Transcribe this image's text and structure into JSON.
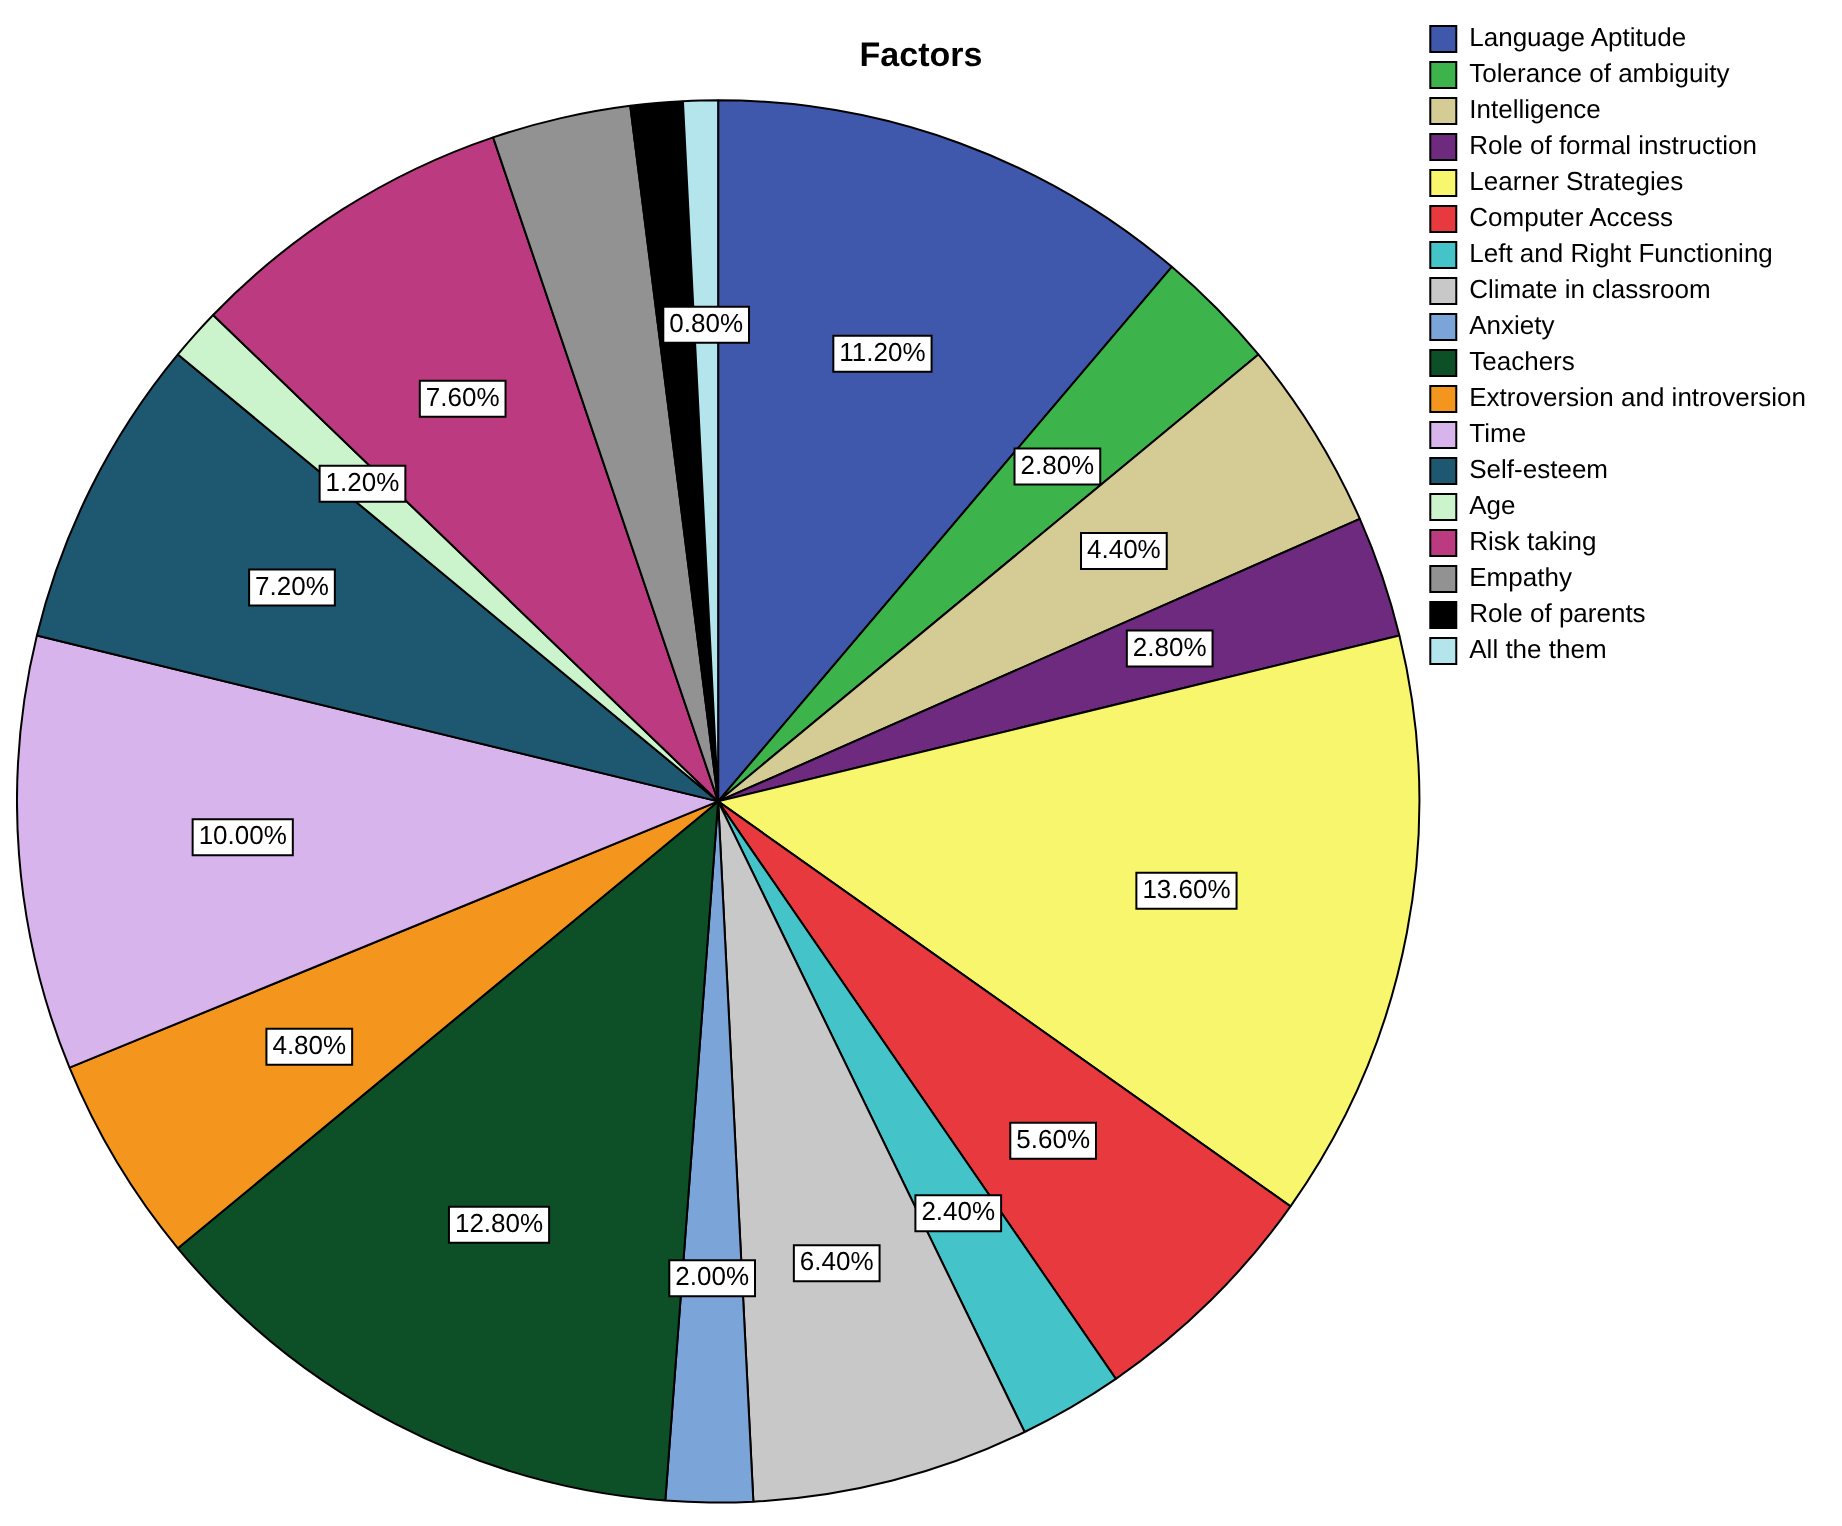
{
  "chart_data": {
    "type": "pie",
    "title": "Factors",
    "categories": [
      "Language Aptitude",
      "Tolerance of ambiguity",
      "Intelligence",
      "Role of formal instruction",
      "Learner Strategies",
      "Computer Access",
      "Left and Right Functioning",
      "Climate in classroom",
      "Anxiety",
      "Teachers",
      "Extroversion and introversion",
      "Time",
      "Self-esteem",
      "Age",
      "Risk taking",
      "Empathy",
      "Role of parents",
      "All the them"
    ],
    "values": [
      11.2,
      2.8,
      4.4,
      2.8,
      13.6,
      5.6,
      2.4,
      6.4,
      2.0,
      12.8,
      4.8,
      10.0,
      7.2,
      1.2,
      7.6,
      3.2,
      1.2,
      0.8
    ],
    "value_labels": [
      "11.20%",
      "2.80%",
      "4.40%",
      "2.80%",
      "13.60%",
      "5.60%",
      "2.40%",
      "6.40%",
      "2.00%",
      "12.80%",
      "4.80%",
      "10.00%",
      "7.20%",
      "1.20%",
      "7.60%",
      null,
      null,
      "0.80%"
    ],
    "colors": [
      "#3f58ab",
      "#3cb44b",
      "#d4cc94",
      "#6e2a7e",
      "#f8f66c",
      "#e83a3e",
      "#44c4c8",
      "#c8c8c8",
      "#7ba4d8",
      "#0d5028",
      "#f4961e",
      "#d8b4ec",
      "#1d5870",
      "#ccf4cc",
      "#bc3a80",
      "#929292",
      "#000000",
      "#b4e4ec"
    ],
    "legend": "right"
  }
}
